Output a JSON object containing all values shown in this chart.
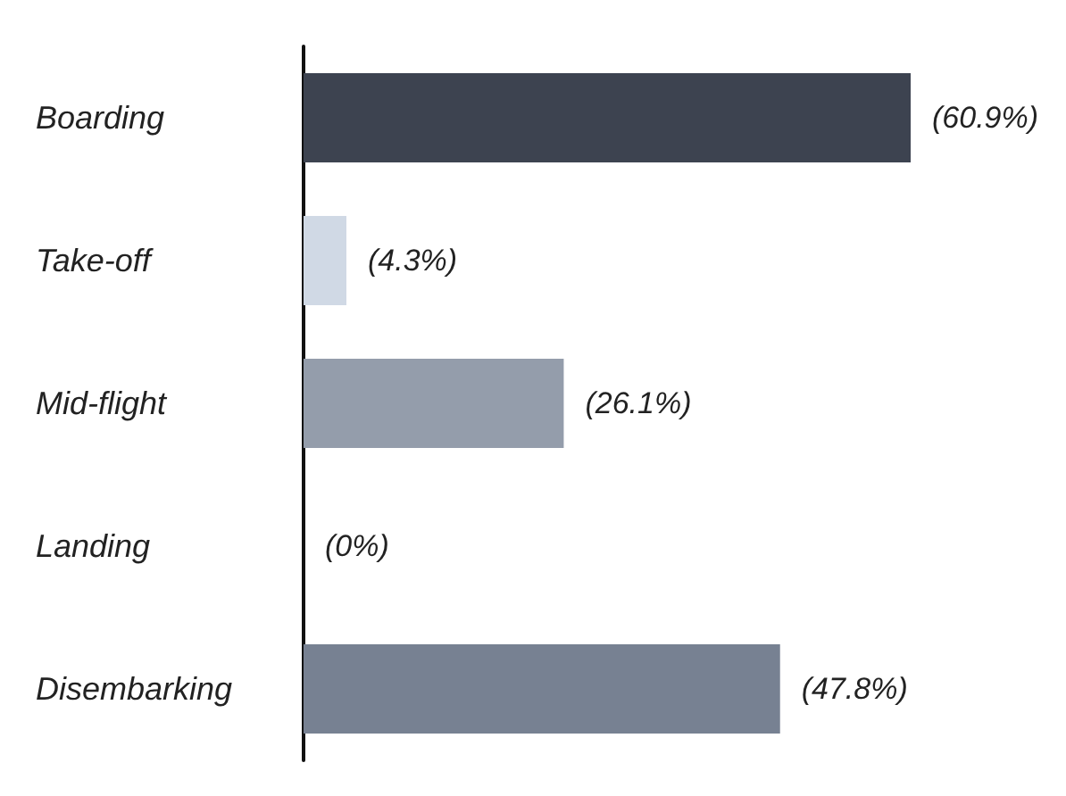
{
  "chart_data": {
    "type": "bar",
    "orientation": "horizontal",
    "tick_labels": "y",
    "categories": [
      "Boarding",
      "Take-off",
      "Mid-flight",
      "Landing",
      "Disembarking"
    ],
    "values": [
      60.9,
      4.3,
      26.1,
      0,
      47.8
    ],
    "colors": [
      "#3d4350",
      "#d0d9e5",
      "#949dab",
      "#949dab",
      "#778192"
    ],
    "value_labels": [
      "(60.9%)",
      "(4.3%)",
      "(26.1%)",
      "(0%)",
      "(47.8%)"
    ]
  }
}
